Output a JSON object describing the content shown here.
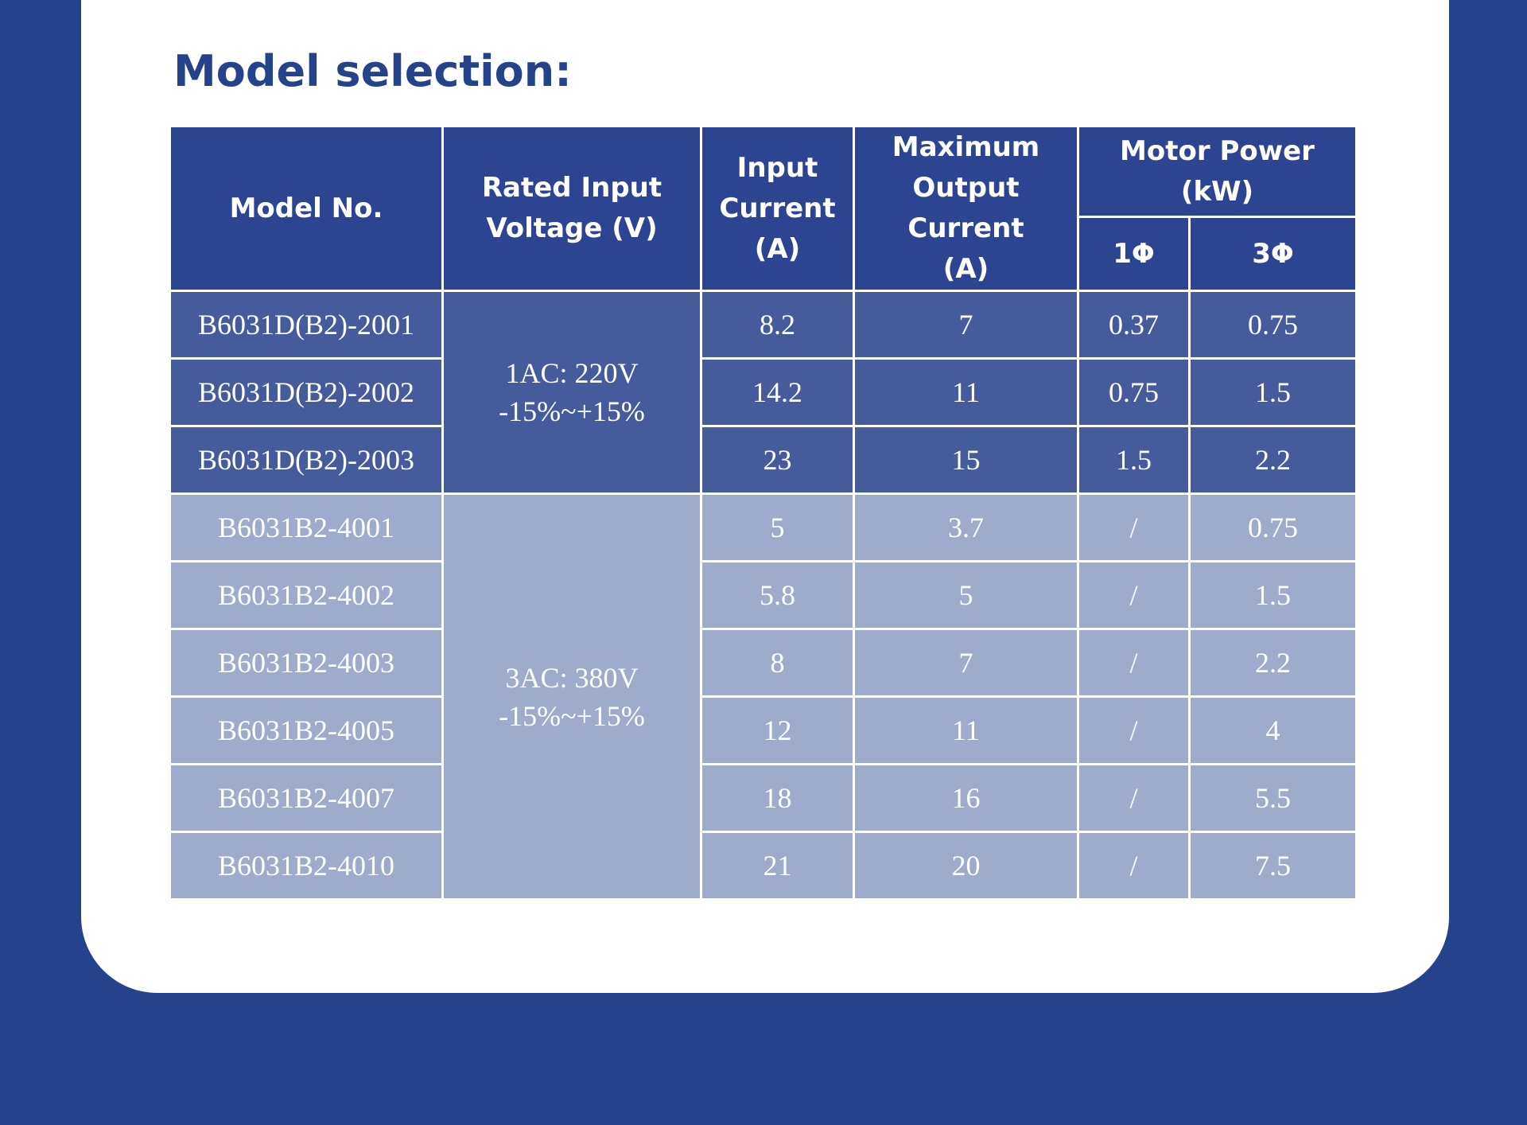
{
  "title": "Model selection:",
  "table": {
    "headers": {
      "model": "Model No.",
      "voltage": [
        "Rated Input",
        "Voltage (V)"
      ],
      "input_current": [
        "Input",
        "Current",
        "(A)"
      ],
      "max_output": [
        "Maximum",
        "Output Current",
        "(A)"
      ],
      "motor_power": "Motor Power (kW)",
      "phase1": "1Φ",
      "phase3": "3Φ"
    },
    "groups": [
      {
        "voltage_line1": "1AC: 220V",
        "voltage_line2": "-15%~+15%",
        "rows": [
          {
            "model": "B6031D(B2)-2001",
            "input_current": "8.2",
            "max_output": "7",
            "power_1ph": "0.37",
            "power_3ph": "0.75"
          },
          {
            "model": "B6031D(B2)-2002",
            "input_current": "14.2",
            "max_output": "11",
            "power_1ph": "0.75",
            "power_3ph": "1.5"
          },
          {
            "model": "B6031D(B2)-2003",
            "input_current": "23",
            "max_output": "15",
            "power_1ph": "1.5",
            "power_3ph": "2.2"
          }
        ]
      },
      {
        "voltage_line1": "3AC: 380V",
        "voltage_line2": "-15%~+15%",
        "rows": [
          {
            "model": "B6031B2-4001",
            "input_current": "5",
            "max_output": "3.7",
            "power_1ph": "/",
            "power_3ph": "0.75"
          },
          {
            "model": "B6031B2-4002",
            "input_current": "5.8",
            "max_output": "5",
            "power_1ph": "/",
            "power_3ph": "1.5"
          },
          {
            "model": "B6031B2-4003",
            "input_current": "8",
            "max_output": "7",
            "power_1ph": "/",
            "power_3ph": "2.2"
          },
          {
            "model": "B6031B2-4005",
            "input_current": "12",
            "max_output": "11",
            "power_1ph": "/",
            "power_3ph": "4"
          },
          {
            "model": "B6031B2-4007",
            "input_current": "18",
            "max_output": "16",
            "power_1ph": "/",
            "power_3ph": "5.5"
          },
          {
            "model": "B6031B2-4010",
            "input_current": "21",
            "max_output": "20",
            "power_1ph": "/",
            "power_3ph": "7.5"
          }
        ]
      }
    ]
  },
  "colors": {
    "page_background": "#25438a",
    "header_fill": "#2b4590",
    "group_1ac_fill": "#445c9b",
    "group_3ac_fill": "#9eabcc",
    "title_text": "#25438a"
  }
}
